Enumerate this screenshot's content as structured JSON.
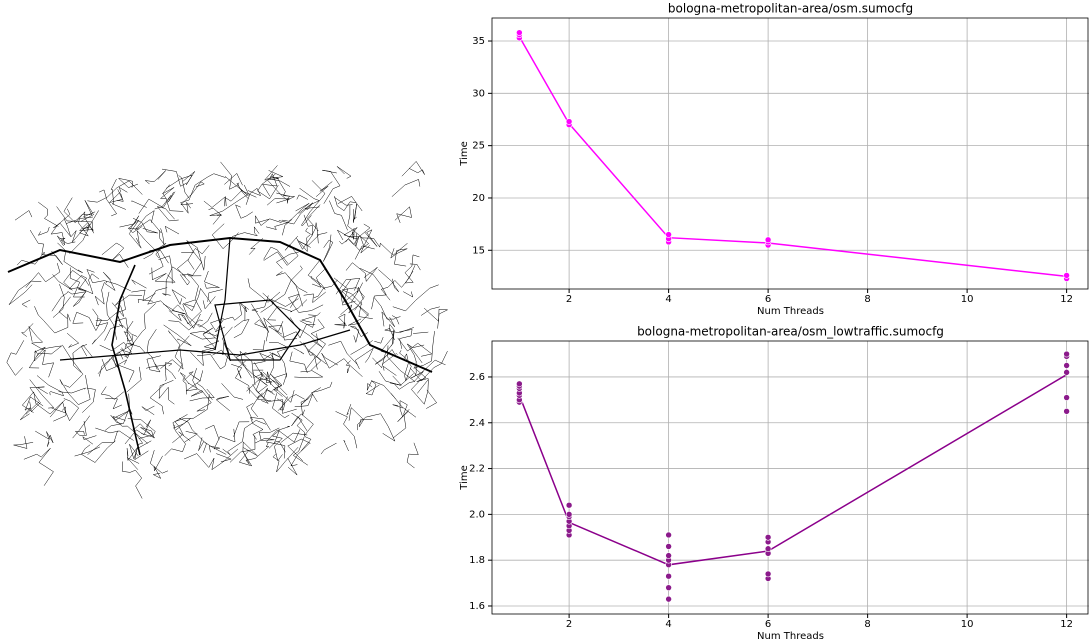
{
  "chart_data": [
    {
      "type": "line",
      "title": "bologna-metropolitan-area/osm.sumocfg",
      "xlabel": "Num Threads",
      "ylabel": "Time",
      "line": {
        "color": "#ff00ff",
        "x": [
          1,
          2,
          4,
          6,
          12
        ],
        "values": [
          35.4,
          27.1,
          16.2,
          15.7,
          12.5
        ]
      },
      "points": {
        "color": "#ff00ff",
        "x": [
          1,
          1,
          1,
          2,
          2,
          4,
          4,
          4,
          6,
          6,
          6,
          12,
          12
        ],
        "values": [
          35.3,
          35.6,
          35.8,
          27.0,
          27.3,
          15.8,
          16.1,
          16.5,
          15.5,
          15.8,
          16.0,
          12.3,
          12.6
        ]
      },
      "xlim": [
        0.45,
        12.45
      ],
      "xticks": [
        2,
        4,
        6,
        8,
        10,
        12
      ],
      "ylim": [
        11.3,
        37.2
      ],
      "yticks": [
        15,
        20,
        25,
        30,
        35
      ],
      "grid": true
    },
    {
      "type": "line",
      "title": "bologna-metropolitan-area/osm_lowtraffic.sumocfg",
      "xlabel": "Num Threads",
      "ylabel": "Time",
      "line": {
        "color": "#8b008b",
        "x": [
          1,
          2,
          4,
          6,
          12
        ],
        "values": [
          2.52,
          1.965,
          1.78,
          1.84,
          2.61
        ]
      },
      "points": {
        "color": "#8b1a8b",
        "x": [
          1,
          1,
          1,
          1,
          1,
          1,
          1,
          2,
          2,
          2,
          2,
          2,
          2,
          2,
          4,
          4,
          4,
          4,
          4,
          4,
          4,
          4,
          6,
          6,
          6,
          6,
          6,
          6,
          12,
          12,
          12,
          12,
          12,
          12
        ],
        "values": [
          2.49,
          2.5,
          2.52,
          2.53,
          2.55,
          2.56,
          2.57,
          1.91,
          1.93,
          1.95,
          1.97,
          1.99,
          2.0,
          2.04,
          1.63,
          1.68,
          1.73,
          1.78,
          1.8,
          1.82,
          1.86,
          1.91,
          1.72,
          1.74,
          1.83,
          1.85,
          1.88,
          1.9,
          2.45,
          2.51,
          2.62,
          2.65,
          2.69,
          2.7
        ]
      },
      "xlim": [
        0.45,
        12.45
      ],
      "xticks": [
        2,
        4,
        6,
        8,
        10,
        12
      ],
      "ylim": [
        1.565,
        2.757
      ],
      "yticks": [
        1.6,
        1.8,
        {
          "value": 2,
          "label": "2.0"
        },
        2.2,
        2.4,
        2.6
      ],
      "grid": true
    }
  ]
}
